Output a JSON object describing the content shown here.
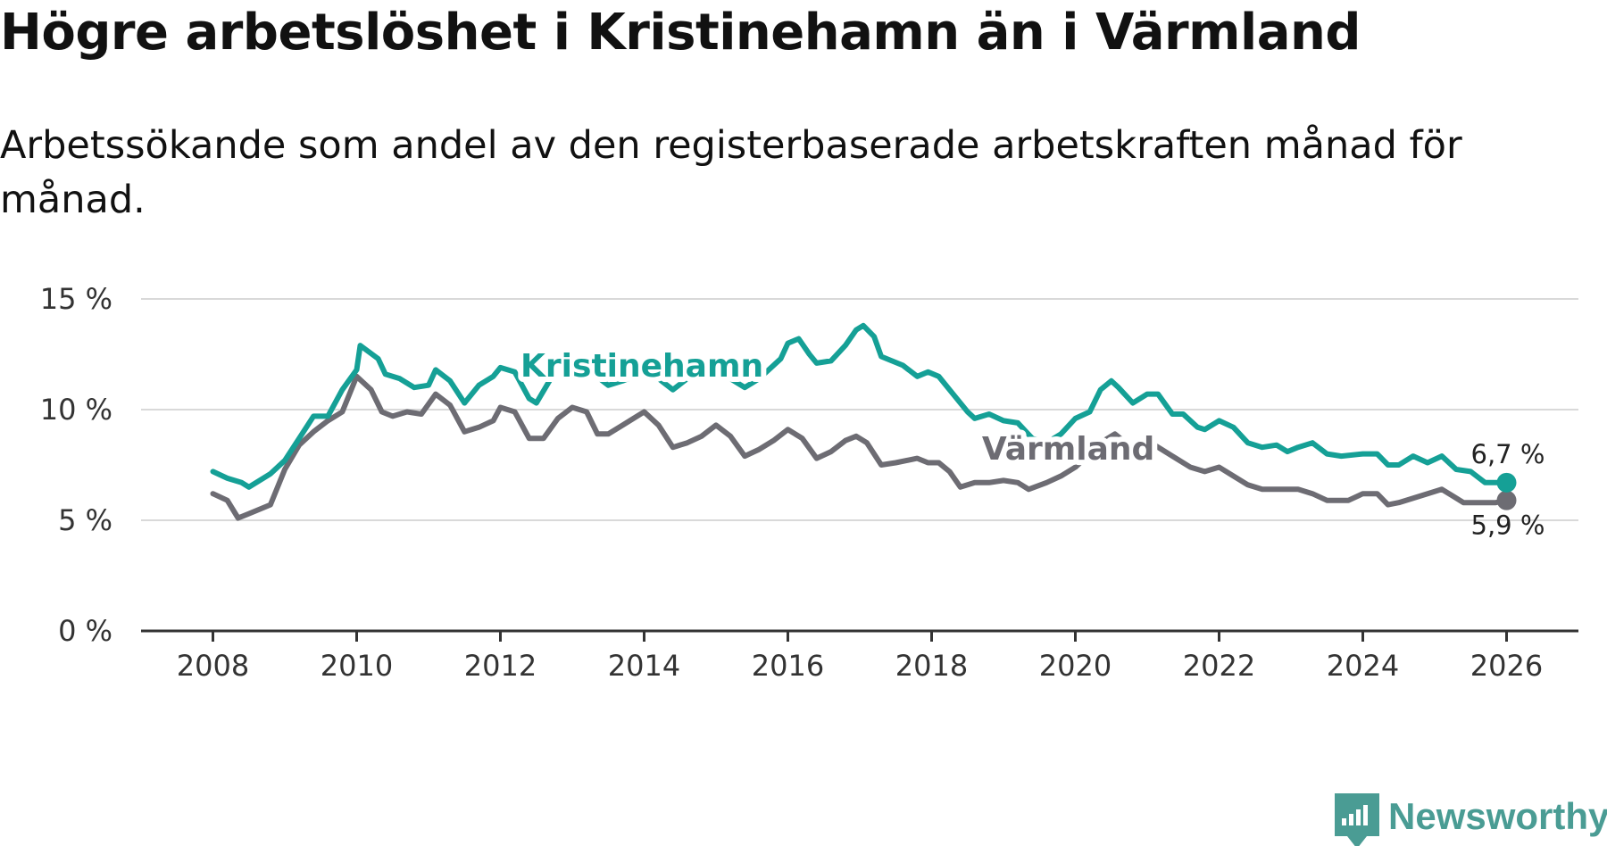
{
  "chart_data": {
    "type": "line",
    "title": "Högre arbetslöshet i Kristinehamn än i Värmland",
    "subtitle": "Arbetssökande som andel av den registerbaserade arbetskraften månad för månad.",
    "xlabel": "",
    "ylabel": "",
    "xlim": [
      2007.0,
      2027.0
    ],
    "ylim": [
      0,
      15
    ],
    "x_ticks": [
      {
        "value": 2008,
        "label": "2008"
      },
      {
        "value": 2010,
        "label": "2010"
      },
      {
        "value": 2012,
        "label": "2012"
      },
      {
        "value": 2014,
        "label": "2014"
      },
      {
        "value": 2016,
        "label": "2016"
      },
      {
        "value": 2018,
        "label": "2018"
      },
      {
        "value": 2020,
        "label": "2020"
      },
      {
        "value": 2022,
        "label": "2022"
      },
      {
        "value": 2024,
        "label": "2024"
      },
      {
        "value": 2026,
        "label": "2026"
      }
    ],
    "y_ticks": [
      {
        "value": 0,
        "label": "0 %"
      },
      {
        "value": 5,
        "label": "5 %"
      },
      {
        "value": 10,
        "label": "10 %"
      },
      {
        "value": 15,
        "label": "15 %"
      }
    ],
    "grid": true,
    "series": [
      {
        "name": "Kristinehamn",
        "label": "Kristinehamn",
        "color": "#15a096",
        "end_label": "6,7 %",
        "points": [
          [
            2008.0,
            7.2
          ],
          [
            2008.2,
            6.9
          ],
          [
            2008.4,
            6.7
          ],
          [
            2008.5,
            6.5
          ],
          [
            2008.8,
            7.1
          ],
          [
            2009.0,
            7.7
          ],
          [
            2009.2,
            8.7
          ],
          [
            2009.4,
            9.7
          ],
          [
            2009.6,
            9.7
          ],
          [
            2009.8,
            10.9
          ],
          [
            2010.0,
            11.8
          ],
          [
            2010.05,
            12.9
          ],
          [
            2010.3,
            12.3
          ],
          [
            2010.4,
            11.6
          ],
          [
            2010.6,
            11.4
          ],
          [
            2010.8,
            11.0
          ],
          [
            2011.0,
            11.1
          ],
          [
            2011.1,
            11.8
          ],
          [
            2011.3,
            11.3
          ],
          [
            2011.5,
            10.3
          ],
          [
            2011.7,
            11.1
          ],
          [
            2011.9,
            11.5
          ],
          [
            2012.0,
            11.9
          ],
          [
            2012.2,
            11.7
          ],
          [
            2012.4,
            10.5
          ],
          [
            2012.5,
            10.3
          ],
          [
            2012.7,
            11.4
          ],
          [
            2013.0,
            12.0
          ],
          [
            2013.3,
            11.6
          ],
          [
            2013.5,
            11.1
          ],
          [
            2013.7,
            11.3
          ],
          [
            2014.0,
            11.7
          ],
          [
            2014.2,
            11.4
          ],
          [
            2014.4,
            10.9
          ],
          [
            2014.6,
            11.4
          ],
          [
            2015.0,
            11.7
          ],
          [
            2015.2,
            11.4
          ],
          [
            2015.4,
            11.0
          ],
          [
            2015.6,
            11.4
          ],
          [
            2015.9,
            12.3
          ],
          [
            2016.0,
            13.0
          ],
          [
            2016.15,
            13.2
          ],
          [
            2016.3,
            12.5
          ],
          [
            2016.4,
            12.1
          ],
          [
            2016.6,
            12.2
          ],
          [
            2016.8,
            12.9
          ],
          [
            2016.95,
            13.6
          ],
          [
            2017.05,
            13.8
          ],
          [
            2017.2,
            13.3
          ],
          [
            2017.3,
            12.4
          ],
          [
            2017.6,
            12.0
          ],
          [
            2017.8,
            11.5
          ],
          [
            2017.95,
            11.7
          ],
          [
            2018.1,
            11.5
          ],
          [
            2018.3,
            10.7
          ],
          [
            2018.5,
            9.9
          ],
          [
            2018.6,
            9.6
          ],
          [
            2018.8,
            9.8
          ],
          [
            2019.0,
            9.5
          ],
          [
            2019.2,
            9.4
          ],
          [
            2019.4,
            8.7
          ],
          [
            2019.6,
            8.5
          ],
          [
            2019.8,
            8.9
          ],
          [
            2020.0,
            9.6
          ],
          [
            2020.2,
            9.9
          ],
          [
            2020.35,
            10.9
          ],
          [
            2020.5,
            11.3
          ],
          [
            2020.6,
            11.0
          ],
          [
            2020.8,
            10.3
          ],
          [
            2021.0,
            10.7
          ],
          [
            2021.15,
            10.7
          ],
          [
            2021.35,
            9.8
          ],
          [
            2021.5,
            9.8
          ],
          [
            2021.7,
            9.2
          ],
          [
            2021.8,
            9.1
          ],
          [
            2022.0,
            9.5
          ],
          [
            2022.2,
            9.2
          ],
          [
            2022.4,
            8.5
          ],
          [
            2022.6,
            8.3
          ],
          [
            2022.8,
            8.4
          ],
          [
            2022.95,
            8.1
          ],
          [
            2023.1,
            8.3
          ],
          [
            2023.3,
            8.5
          ],
          [
            2023.5,
            8.0
          ],
          [
            2023.7,
            7.9
          ],
          [
            2024.0,
            8.0
          ],
          [
            2024.2,
            8.0
          ],
          [
            2024.35,
            7.5
          ],
          [
            2024.5,
            7.5
          ],
          [
            2024.7,
            7.9
          ],
          [
            2024.9,
            7.6
          ],
          [
            2025.1,
            7.9
          ],
          [
            2025.3,
            7.3
          ],
          [
            2025.5,
            7.2
          ],
          [
            2025.7,
            6.7
          ],
          [
            2025.85,
            6.7
          ],
          [
            2026.0,
            6.7
          ]
        ]
      },
      {
        "name": "Värmland",
        "label": "Värmland",
        "color": "#6d6c73",
        "end_label": "5,9 %",
        "points": [
          [
            2008.0,
            6.2
          ],
          [
            2008.2,
            5.9
          ],
          [
            2008.35,
            5.1
          ],
          [
            2008.5,
            5.3
          ],
          [
            2008.8,
            5.7
          ],
          [
            2009.0,
            7.3
          ],
          [
            2009.2,
            8.4
          ],
          [
            2009.4,
            9.0
          ],
          [
            2009.6,
            9.5
          ],
          [
            2009.8,
            9.9
          ],
          [
            2010.0,
            11.5
          ],
          [
            2010.2,
            10.9
          ],
          [
            2010.35,
            9.9
          ],
          [
            2010.5,
            9.7
          ],
          [
            2010.7,
            9.9
          ],
          [
            2010.9,
            9.8
          ],
          [
            2011.1,
            10.7
          ],
          [
            2011.3,
            10.2
          ],
          [
            2011.5,
            9.0
          ],
          [
            2011.7,
            9.2
          ],
          [
            2011.9,
            9.5
          ],
          [
            2012.0,
            10.1
          ],
          [
            2012.2,
            9.9
          ],
          [
            2012.4,
            8.7
          ],
          [
            2012.6,
            8.7
          ],
          [
            2012.8,
            9.6
          ],
          [
            2013.0,
            10.1
          ],
          [
            2013.2,
            9.9
          ],
          [
            2013.35,
            8.9
          ],
          [
            2013.5,
            8.9
          ],
          [
            2013.7,
            9.3
          ],
          [
            2013.9,
            9.7
          ],
          [
            2014.0,
            9.9
          ],
          [
            2014.2,
            9.3
          ],
          [
            2014.4,
            8.3
          ],
          [
            2014.6,
            8.5
          ],
          [
            2014.8,
            8.8
          ],
          [
            2015.0,
            9.3
          ],
          [
            2015.2,
            8.8
          ],
          [
            2015.4,
            7.9
          ],
          [
            2015.6,
            8.2
          ],
          [
            2015.8,
            8.6
          ],
          [
            2016.0,
            9.1
          ],
          [
            2016.2,
            8.7
          ],
          [
            2016.4,
            7.8
          ],
          [
            2016.6,
            8.1
          ],
          [
            2016.8,
            8.6
          ],
          [
            2016.95,
            8.8
          ],
          [
            2017.1,
            8.5
          ],
          [
            2017.3,
            7.5
          ],
          [
            2017.5,
            7.6
          ],
          [
            2017.8,
            7.8
          ],
          [
            2017.95,
            7.6
          ],
          [
            2018.1,
            7.6
          ],
          [
            2018.25,
            7.2
          ],
          [
            2018.4,
            6.5
          ],
          [
            2018.6,
            6.7
          ],
          [
            2018.8,
            6.7
          ],
          [
            2019.0,
            6.8
          ],
          [
            2019.2,
            6.7
          ],
          [
            2019.35,
            6.4
          ],
          [
            2019.6,
            6.7
          ],
          [
            2019.8,
            7.0
          ],
          [
            2020.0,
            7.4
          ],
          [
            2020.2,
            8.0
          ],
          [
            2020.4,
            8.6
          ],
          [
            2020.55,
            8.9
          ],
          [
            2020.7,
            8.5
          ],
          [
            2020.9,
            8.4
          ],
          [
            2021.0,
            8.6
          ],
          [
            2021.2,
            8.2
          ],
          [
            2021.4,
            7.8
          ],
          [
            2021.6,
            7.4
          ],
          [
            2021.8,
            7.2
          ],
          [
            2022.0,
            7.4
          ],
          [
            2022.2,
            7.0
          ],
          [
            2022.4,
            6.6
          ],
          [
            2022.6,
            6.4
          ],
          [
            2022.9,
            6.4
          ],
          [
            2023.1,
            6.4
          ],
          [
            2023.3,
            6.2
          ],
          [
            2023.5,
            5.9
          ],
          [
            2023.8,
            5.9
          ],
          [
            2024.0,
            6.2
          ],
          [
            2024.2,
            6.2
          ],
          [
            2024.35,
            5.7
          ],
          [
            2024.5,
            5.8
          ],
          [
            2024.7,
            6.0
          ],
          [
            2024.9,
            6.2
          ],
          [
            2025.1,
            6.4
          ],
          [
            2025.25,
            6.1
          ],
          [
            2025.4,
            5.8
          ],
          [
            2025.7,
            5.8
          ],
          [
            2025.85,
            5.8
          ],
          [
            2026.0,
            5.9
          ]
        ]
      }
    ]
  },
  "branding": {
    "name": "Newsworthy",
    "icon": "newsworthy-logo-icon",
    "color": "#4a9c94"
  }
}
